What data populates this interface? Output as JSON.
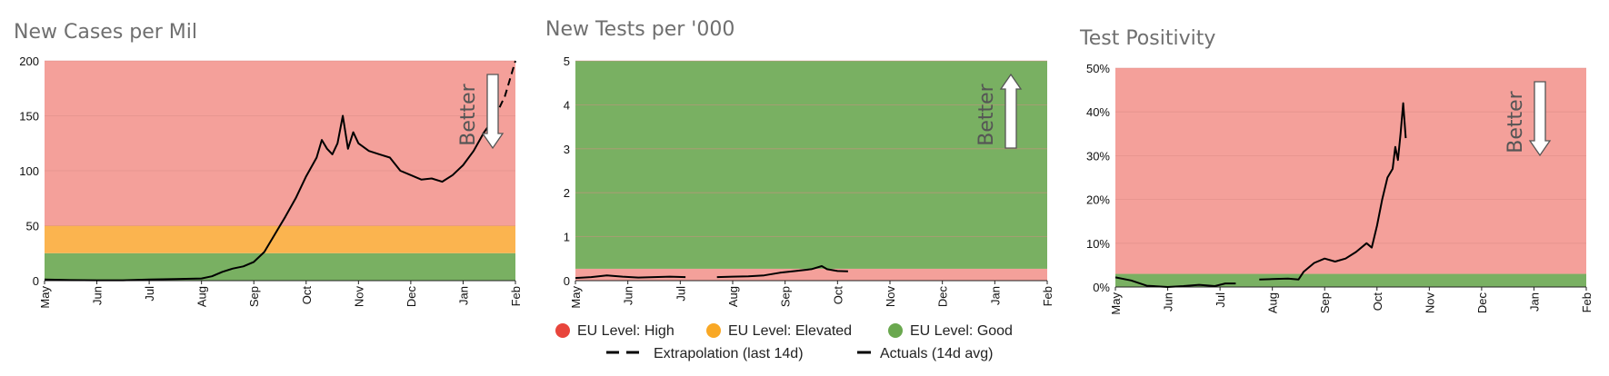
{
  "chart_data": [
    {
      "type": "line",
      "title": "New Cases per Mil",
      "better_label": "Better",
      "better_direction": "down",
      "x_ticks": [
        "May",
        "Jun",
        "Jul",
        "Aug",
        "Sep",
        "Oct",
        "Nov",
        "Dec",
        "Jan",
        "Feb"
      ],
      "y_ticks": [
        "0",
        "50",
        "100",
        "150",
        "200"
      ],
      "ylim": [
        0,
        200
      ],
      "bands": [
        {
          "level": "good",
          "from": 0,
          "to": 25
        },
        {
          "level": "elevated",
          "from": 25,
          "to": 50
        },
        {
          "level": "high",
          "from": 50,
          "to": 200
        }
      ],
      "series": [
        {
          "name": "Actuals (14d avg)",
          "style": "solid",
          "segments": [
            [
              [
                0,
                1
              ],
              [
                0.5,
                0.5
              ],
              [
                1,
                0.3
              ],
              [
                1.5,
                0.3
              ],
              [
                2,
                1
              ],
              [
                2.5,
                1.5
              ],
              [
                3,
                2
              ],
              [
                3.2,
                4
              ],
              [
                3.4,
                8
              ],
              [
                3.6,
                11
              ],
              [
                3.8,
                13
              ],
              [
                4,
                17
              ],
              [
                4.2,
                26
              ],
              [
                4.4,
                42
              ],
              [
                4.6,
                58
              ],
              [
                4.8,
                75
              ],
              [
                5,
                95
              ],
              [
                5.2,
                112
              ],
              [
                5.3,
                128
              ],
              [
                5.4,
                120
              ],
              [
                5.5,
                115
              ],
              [
                5.6,
                125
              ],
              [
                5.7,
                150
              ],
              [
                5.8,
                120
              ],
              [
                5.9,
                135
              ],
              [
                6,
                125
              ],
              [
                6.2,
                118
              ],
              [
                6.4,
                115
              ],
              [
                6.6,
                112
              ],
              [
                6.8,
                100
              ],
              [
                7,
                96
              ],
              [
                7.2,
                92
              ],
              [
                7.4,
                93
              ],
              [
                7.6,
                90
              ],
              [
                7.8,
                96
              ],
              [
                8,
                105
              ],
              [
                8.2,
                118
              ],
              [
                8.4,
                135
              ],
              [
                8.6,
                148
              ]
            ]
          ]
        },
        {
          "name": "Extrapolation (last 14d)",
          "style": "dashed",
          "segments": [
            [
              [
                8.6,
                148
              ],
              [
                8.8,
                168
              ],
              [
                9,
                200
              ]
            ]
          ]
        }
      ]
    },
    {
      "type": "line",
      "title": "New Tests per '000",
      "better_label": "Better",
      "better_direction": "up",
      "x_ticks": [
        "May",
        "Jun",
        "Jul",
        "Aug",
        "Sep",
        "Oct",
        "Nov",
        "Dec",
        "Jan",
        "Feb"
      ],
      "y_ticks": [
        "0",
        "1",
        "2",
        "3",
        "4",
        "5"
      ],
      "ylim": [
        0,
        5
      ],
      "bands": [
        {
          "level": "high",
          "from": 0,
          "to": 0.27
        },
        {
          "level": "good",
          "from": 0.27,
          "to": 5
        }
      ],
      "series": [
        {
          "name": "Actuals (14d avg)",
          "style": "solid",
          "segments": [
            [
              [
                0,
                0.06
              ],
              [
                0.3,
                0.08
              ],
              [
                0.6,
                0.12
              ],
              [
                0.9,
                0.09
              ],
              [
                1.2,
                0.07
              ],
              [
                1.5,
                0.08
              ],
              [
                1.8,
                0.09
              ],
              [
                2.1,
                0.08
              ]
            ],
            [
              [
                2.7,
                0.08
              ],
              [
                3,
                0.09
              ],
              [
                3.3,
                0.1
              ],
              [
                3.6,
                0.12
              ],
              [
                3.9,
                0.18
              ],
              [
                4.2,
                0.22
              ],
              [
                4.5,
                0.26
              ],
              [
                4.7,
                0.33
              ],
              [
                4.8,
                0.26
              ],
              [
                5,
                0.22
              ],
              [
                5.2,
                0.21
              ]
            ]
          ]
        }
      ]
    },
    {
      "type": "line",
      "title": "Test Positivity",
      "better_label": "Better",
      "better_direction": "down",
      "x_ticks": [
        "May",
        "Jun",
        "Jul",
        "Aug",
        "Sep",
        "Oct",
        "Nov",
        "Dec",
        "Jan",
        "Feb"
      ],
      "y_ticks": [
        "0%",
        "10%",
        "20%",
        "30%",
        "40%",
        "50%"
      ],
      "ylim": [
        0,
        50
      ],
      "bands": [
        {
          "level": "good",
          "from": 0,
          "to": 3
        },
        {
          "level": "high",
          "from": 3,
          "to": 50
        }
      ],
      "series": [
        {
          "name": "Actuals (14d avg)",
          "style": "solid",
          "segments": [
            [
              [
                0,
                2.2
              ],
              [
                0.3,
                1.5
              ],
              [
                0.6,
                0.3
              ],
              [
                1,
                0
              ],
              [
                1.3,
                0.2
              ],
              [
                1.6,
                0.5
              ],
              [
                1.9,
                0.2
              ],
              [
                2.1,
                0.8
              ],
              [
                2.3,
                0.8
              ]
            ],
            [
              [
                2.75,
                1.7
              ],
              [
                3,
                1.8
              ],
              [
                3.3,
                1.9
              ],
              [
                3.5,
                1.7
              ],
              [
                3.6,
                3.5
              ],
              [
                3.8,
                5.5
              ],
              [
                4,
                6.5
              ],
              [
                4.2,
                5.8
              ],
              [
                4.4,
                6.5
              ],
              [
                4.6,
                8
              ],
              [
                4.8,
                10
              ],
              [
                4.9,
                9
              ],
              [
                5,
                14
              ],
              [
                5.1,
                20
              ],
              [
                5.2,
                25
              ],
              [
                5.3,
                27
              ],
              [
                5.35,
                32
              ],
              [
                5.4,
                29
              ],
              [
                5.45,
                35
              ],
              [
                5.5,
                42
              ],
              [
                5.55,
                34
              ]
            ]
          ]
        }
      ]
    }
  ],
  "legend": {
    "levels": [
      {
        "label": "EU Level: High",
        "color": "#e8453c"
      },
      {
        "label": "EU Level: Elevated",
        "color": "#f9a825"
      },
      {
        "label": "EU Level: Good",
        "color": "#6aa84f"
      }
    ],
    "lines": [
      {
        "label": "Extrapolation (last 14d)",
        "style": "dashed"
      },
      {
        "label": "Actuals (14d avg)",
        "style": "solid"
      }
    ]
  },
  "colors": {
    "band_high": "#f4a09a",
    "band_elevated": "#fbb44f",
    "band_good": "#79b062",
    "line": "#000000",
    "title": "#6f6f6f"
  }
}
